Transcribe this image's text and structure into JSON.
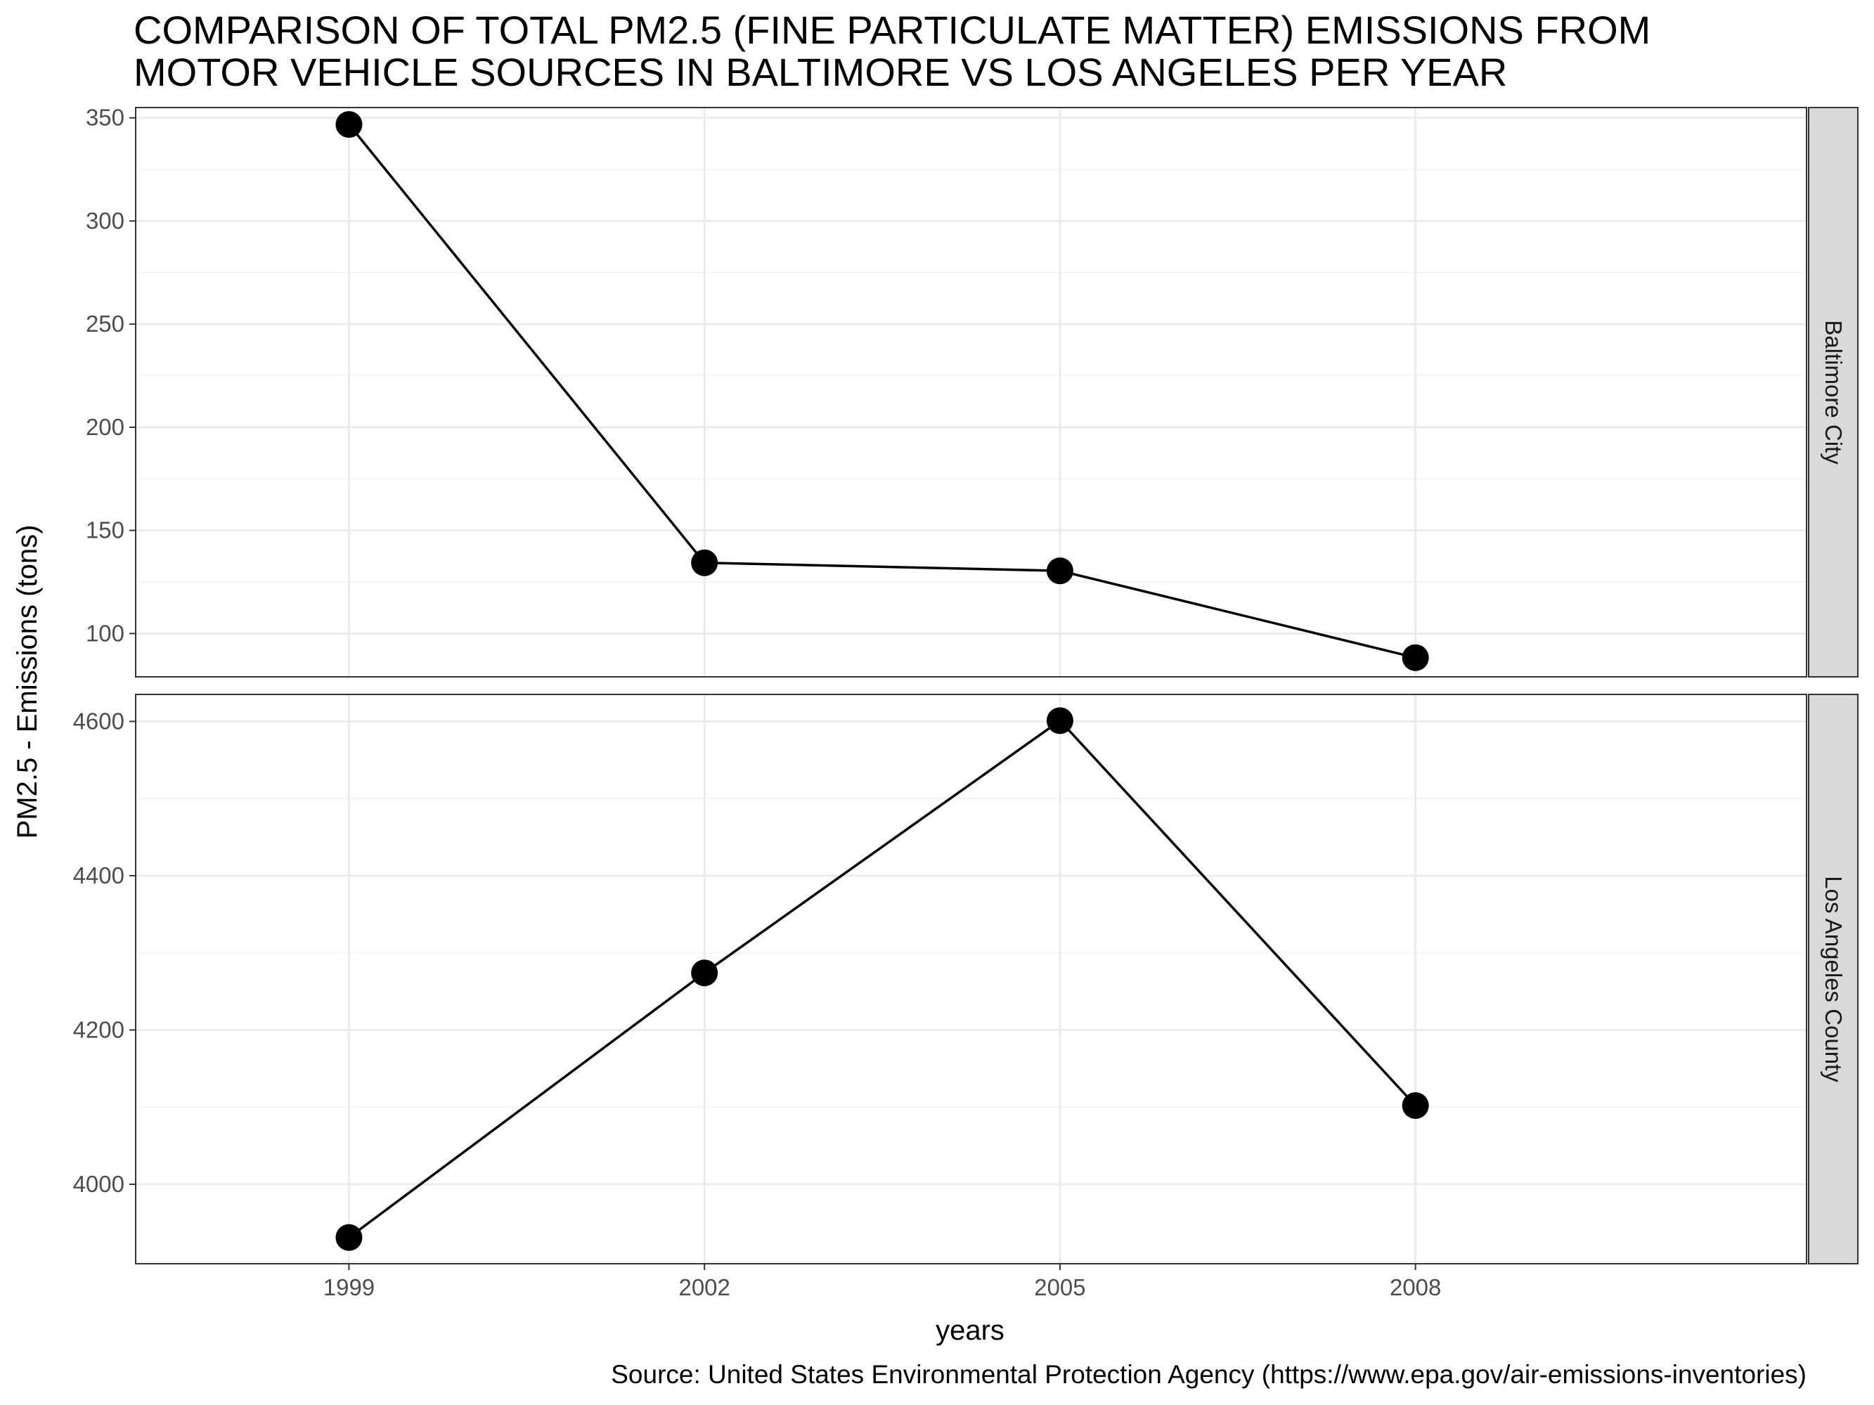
{
  "chart_data": {
    "type": "line",
    "title_lines": [
      "COMPARISON OF TOTAL PM2.5 (FINE PARTICULATE MATTER) EMISSIONS FROM",
      "MOTOR VEHICLE SOURCES IN BALTIMORE VS LOS ANGELES PER YEAR"
    ],
    "xlabel": "years",
    "ylabel": "PM2.5 - Emissions (tons)",
    "caption": "Source: United States Environmental Protection Agency (https://www.epa.gov/air-emissions-inventories)",
    "x": [
      1999,
      2002,
      2005,
      2008
    ],
    "x_tick_labels": [
      "1999",
      "2002",
      "2005",
      "2008"
    ],
    "grid": true,
    "line_color": "#000000",
    "strip_fill": "#d9d9d9",
    "facets": [
      {
        "name": "Baltimore City",
        "values": [
          346.8,
          134.3,
          130.4,
          88.3
        ],
        "ylim": [
          79,
          355
        ],
        "yticks": [
          100,
          150,
          200,
          250,
          300,
          350
        ]
      },
      {
        "name": "Los Angeles County",
        "values": [
          3931,
          4274,
          4601,
          4102
        ],
        "ylim": [
          3897,
          4635
        ],
        "yticks": [
          4000,
          4200,
          4400,
          4600
        ]
      }
    ]
  }
}
